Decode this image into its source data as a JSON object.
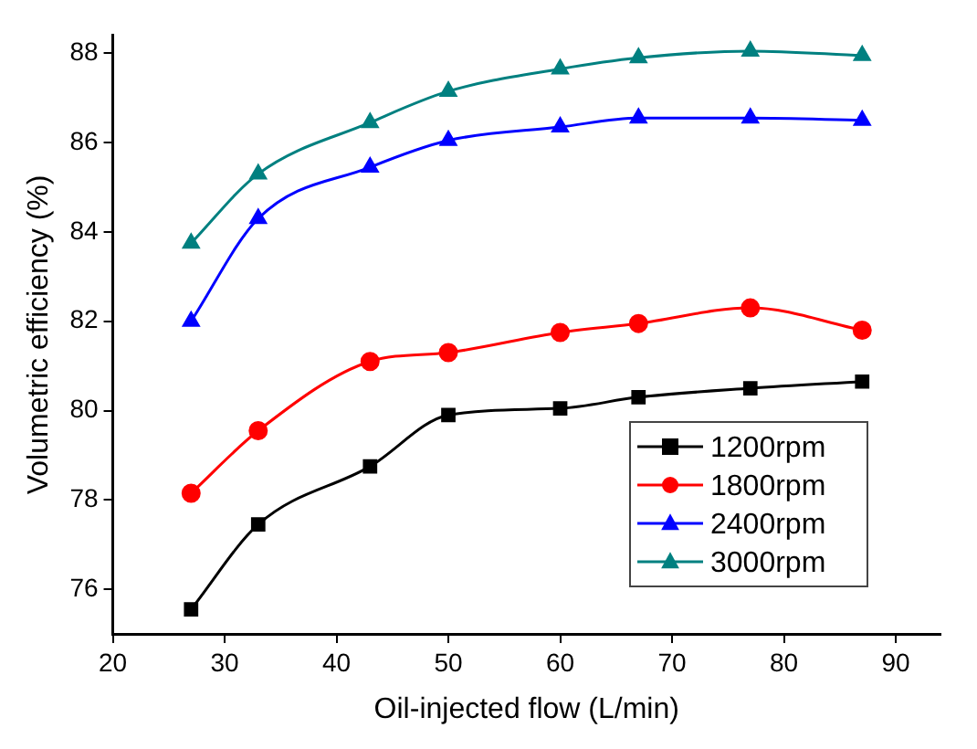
{
  "chart_data": {
    "type": "line",
    "xlabel": "Oil-injected flow (L/min)",
    "ylabel": "Volumetric efficiency (%)",
    "x": [
      27,
      33,
      43,
      50,
      60,
      67,
      77,
      87
    ],
    "xlim": [
      20,
      94
    ],
    "xticks": [
      20,
      30,
      40,
      50,
      60,
      70,
      80,
      90
    ],
    "ylim": [
      75,
      88.4
    ],
    "yticks": [
      76,
      78,
      80,
      82,
      84,
      86,
      88
    ],
    "grid": false,
    "legend": "bottom right",
    "series": [
      {
        "name": "1200rpm",
        "color": "#000000",
        "marker": "square",
        "values": [
          75.55,
          77.45,
          78.75,
          79.9,
          80.05,
          80.3,
          80.5,
          80.65
        ]
      },
      {
        "name": "1800rpm",
        "color": "#ff0000",
        "marker": "circle",
        "values": [
          78.15,
          79.55,
          81.1,
          81.3,
          81.75,
          81.95,
          82.3,
          81.8
        ]
      },
      {
        "name": "2400rpm",
        "color": "#0000ff",
        "marker": "triangle",
        "values": [
          82.0,
          84.3,
          85.45,
          86.05,
          86.35,
          86.55,
          86.55,
          86.5
        ]
      },
      {
        "name": "3000rpm",
        "color": "#008080",
        "marker": "triangle",
        "values": [
          83.75,
          85.3,
          86.45,
          87.15,
          87.65,
          87.9,
          88.05,
          87.95
        ]
      }
    ]
  }
}
